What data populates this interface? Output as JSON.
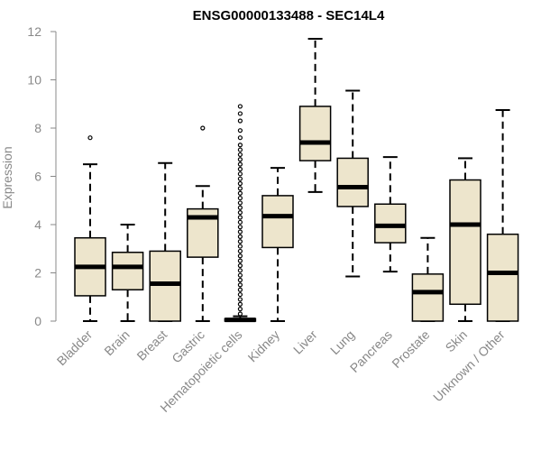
{
  "chart_data": {
    "type": "boxplot",
    "title": "ENSG00000133488 - SEC14L4",
    "xlabel": "",
    "ylabel": "Expression",
    "ylim": [
      0,
      12
    ],
    "yticks": [
      0,
      2,
      4,
      6,
      8,
      10,
      12
    ],
    "box_fill": "#ede5cc",
    "categories": [
      "Bladder",
      "Brain",
      "Breast",
      "Gastric",
      "Hematopoietic cells",
      "Kidney",
      "Liver",
      "Lung",
      "Pancreas",
      "Prostate",
      "Skin",
      "Unknown / Other"
    ],
    "boxes": [
      {
        "name": "Bladder",
        "whislo": 0.0,
        "q1": 1.05,
        "med": 2.25,
        "q3": 3.45,
        "whishi": 6.5,
        "outliers": [
          7.6
        ]
      },
      {
        "name": "Brain",
        "whislo": 0.0,
        "q1": 1.3,
        "med": 2.25,
        "q3": 2.85,
        "whishi": 4.0,
        "outliers": []
      },
      {
        "name": "Breast",
        "whislo": 0.0,
        "q1": 0.0,
        "med": 1.55,
        "q3": 2.9,
        "whishi": 6.55,
        "outliers": []
      },
      {
        "name": "Gastric",
        "whislo": 0.0,
        "q1": 2.65,
        "med": 4.3,
        "q3": 4.65,
        "whishi": 5.6,
        "outliers": [
          8.0
        ]
      },
      {
        "name": "Hematopoietic cells",
        "whislo": 0.0,
        "q1": 0.0,
        "med": 0.05,
        "q3": 0.1,
        "whishi": 0.2,
        "outliers": [
          0.3,
          0.5,
          0.7,
          0.9,
          1.1,
          1.3,
          1.5,
          1.7,
          1.9,
          2.1,
          2.3,
          2.5,
          2.7,
          2.9,
          3.1,
          3.3,
          3.5,
          3.7,
          3.9,
          4.1,
          4.3,
          4.5,
          4.7,
          4.9,
          5.1,
          5.3,
          5.5,
          5.7,
          5.9,
          6.1,
          6.3,
          6.5,
          6.7,
          6.9,
          7.1,
          7.3,
          7.6,
          7.9,
          8.3,
          8.6,
          8.9
        ]
      },
      {
        "name": "Kidney",
        "whislo": 0.0,
        "q1": 3.05,
        "med": 4.35,
        "q3": 5.2,
        "whishi": 6.35,
        "outliers": []
      },
      {
        "name": "Liver",
        "whislo": 5.35,
        "q1": 6.65,
        "med": 7.4,
        "q3": 8.9,
        "whishi": 11.7,
        "outliers": []
      },
      {
        "name": "Lung",
        "whislo": 1.85,
        "q1": 4.75,
        "med": 5.55,
        "q3": 6.75,
        "whishi": 9.55,
        "outliers": []
      },
      {
        "name": "Pancreas",
        "whislo": 2.05,
        "q1": 3.25,
        "med": 3.95,
        "q3": 4.85,
        "whishi": 6.8,
        "outliers": []
      },
      {
        "name": "Prostate",
        "whislo": 0.0,
        "q1": 0.0,
        "med": 1.2,
        "q3": 1.95,
        "whishi": 3.45,
        "outliers": []
      },
      {
        "name": "Skin",
        "whislo": 0.0,
        "q1": 0.7,
        "med": 4.0,
        "q3": 5.85,
        "whishi": 6.75,
        "outliers": []
      },
      {
        "name": "Unknown / Other",
        "whislo": 0.0,
        "q1": 0.0,
        "med": 2.0,
        "q3": 3.6,
        "whishi": 8.75,
        "outliers": []
      }
    ]
  }
}
